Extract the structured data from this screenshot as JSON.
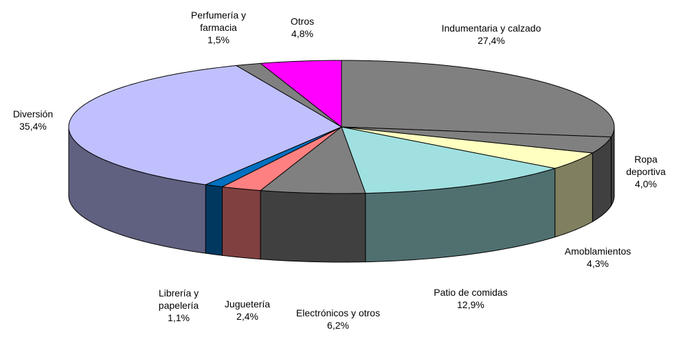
{
  "chart_data": {
    "type": "pie3d",
    "categories": [
      "Indumentaria y calzado",
      "Ropa deportiva",
      "Amoblamientos",
      "Patio de comidas",
      "Electrónicos y otros",
      "Juguetería",
      "Librería y papelería",
      "Diversión",
      "Perfumería y farmacia",
      "Otros"
    ],
    "values": [
      27.4,
      4.0,
      4.3,
      12.9,
      6.2,
      2.4,
      1.1,
      35.4,
      1.5,
      4.8
    ],
    "value_labels": [
      "27,4%",
      "4,0%",
      "4,3%",
      "12,9%",
      "6,2%",
      "2,4%",
      "1,1%",
      "35,4%",
      "1,5%",
      "4,8%"
    ],
    "colors": [
      "#808080",
      "#808080",
      "#FFFFC0",
      "#A0E0E0",
      "#808080",
      "#FF8080",
      "#0070C0",
      "#C0C0FF",
      "#808080",
      "#FF00FF"
    ]
  }
}
